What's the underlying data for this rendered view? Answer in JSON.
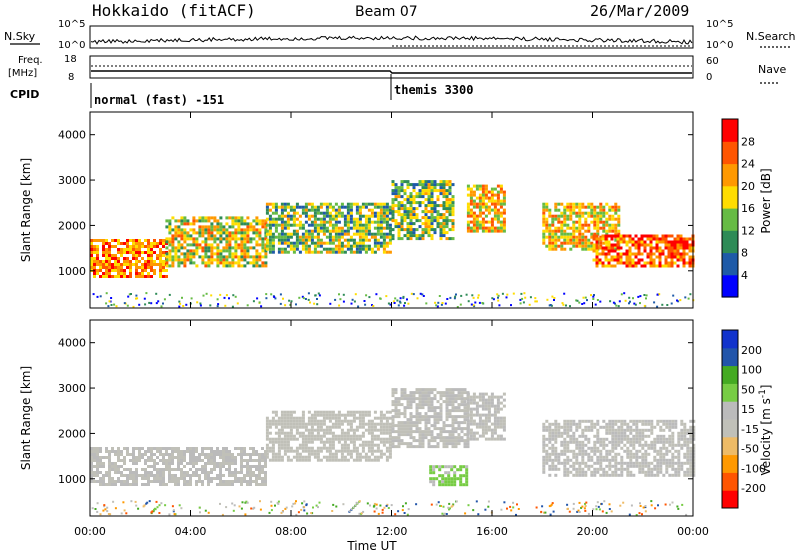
{
  "header": {
    "station": "Hokkaido (fitACF)",
    "beam": "Beam 07",
    "date": "26/Mar/2009"
  },
  "summary": {
    "nsky_label": "N.Sky",
    "nsearch_label": "N.Search",
    "freq_label_line1": "Freq.",
    "freq_label_line2": "[MHz]",
    "nave_label": "Nave",
    "cpid_label": "CPID",
    "left_ticks_top": [
      "10^5",
      "10^0"
    ],
    "right_ticks_top": [
      "10^5",
      "10^0"
    ],
    "left_ticks_freq": [
      "18",
      "8"
    ],
    "right_ticks_nave": [
      "60",
      "0"
    ],
    "cpid_segments": [
      {
        "label": "normal (fast) -151",
        "start_hour": 0
      },
      {
        "label": "themis 3300",
        "start_hour": 12
      }
    ]
  },
  "colors": {
    "power_scale": [
      "#0000ff",
      "#1e5aa8",
      "#2e8b57",
      "#66bb44",
      "#ffdd00",
      "#ff9900",
      "#ff5500",
      "#ff0000"
    ],
    "velocity_scale": [
      "#ff0000",
      "#ff5500",
      "#ff9900",
      "#eebb66",
      "#c0c0b8",
      "#bbbbbb",
      "#77cc44",
      "#44aa22",
      "#2255aa",
      "#1133cc"
    ]
  },
  "chart_data": [
    {
      "type": "heatmap",
      "title": "",
      "xlabel": "",
      "ylabel": "Slant Range [km]",
      "xlim": [
        0,
        24
      ],
      "ylim": [
        180,
        4500
      ],
      "yticks": [
        "1000",
        "2000",
        "3000",
        "4000"
      ],
      "colorbar": {
        "label": "Power [dB]",
        "ticks": [
          "4",
          "8",
          "12",
          "16",
          "20",
          "24",
          "28"
        ],
        "range": [
          0,
          32
        ]
      },
      "echo_regions": [
        {
          "hours": [
            0,
            3
          ],
          "range_km": [
            900,
            1700
          ],
          "level_db": 24
        },
        {
          "hours": [
            3,
            7
          ],
          "range_km": [
            1100,
            2200
          ],
          "level_db": 18
        },
        {
          "hours": [
            7,
            12
          ],
          "range_km": [
            1400,
            2500
          ],
          "level_db": 14
        },
        {
          "hours": [
            12,
            14.5
          ],
          "range_km": [
            1700,
            3000
          ],
          "level_db": 14
        },
        {
          "hours": [
            15,
            16.5
          ],
          "range_km": [
            1900,
            2900
          ],
          "level_db": 20
        },
        {
          "hours": [
            18,
            21
          ],
          "range_km": [
            1500,
            2500
          ],
          "level_db": 20
        },
        {
          "hours": [
            20,
            24
          ],
          "range_km": [
            1100,
            1800
          ],
          "level_db": 26
        }
      ]
    },
    {
      "type": "heatmap",
      "title": "",
      "xlabel": "Time UT",
      "ylabel": "Slant Range [km]",
      "xlim": [
        0,
        24
      ],
      "ylim": [
        180,
        4500
      ],
      "xticks": [
        "00:00",
        "04:00",
        "08:00",
        "12:00",
        "16:00",
        "20:00",
        "00:00"
      ],
      "yticks": [
        "1000",
        "2000",
        "3000",
        "4000"
      ],
      "colorbar": {
        "label": "Velocity [m s^-1]",
        "ticks": [
          "200",
          "100",
          "50",
          "15",
          "-15",
          "-50",
          "-100",
          "-200"
        ],
        "range": [
          -250,
          250
        ]
      },
      "echo_regions": [
        {
          "hours": [
            0,
            7
          ],
          "range_km": [
            900,
            1700
          ],
          "velocity": 0
        },
        {
          "hours": [
            7,
            12
          ],
          "range_km": [
            1400,
            2500
          ],
          "velocity": -30
        },
        {
          "hours": [
            12,
            15
          ],
          "range_km": [
            1700,
            3000
          ],
          "velocity": 0
        },
        {
          "hours": [
            15,
            16.5
          ],
          "range_km": [
            1900,
            2900
          ],
          "velocity": 0
        },
        {
          "hours": [
            18,
            24
          ],
          "range_km": [
            1100,
            2300
          ],
          "velocity": 0
        },
        {
          "hours": [
            13.5,
            15
          ],
          "range_km": [
            900,
            1300
          ],
          "velocity": 60
        }
      ]
    }
  ],
  "xaxis": {
    "ticks": [
      "00:00",
      "04:00",
      "08:00",
      "12:00",
      "16:00",
      "20:00",
      "00:00"
    ],
    "label": "Time UT"
  }
}
